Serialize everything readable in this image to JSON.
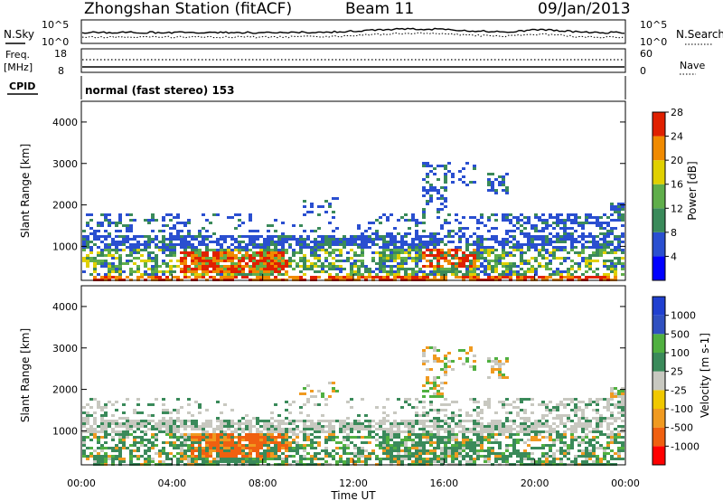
{
  "header": {
    "station": "Zhongshan Station (fitACF)",
    "beam": "Beam 11",
    "date": "09/Jan/2013"
  },
  "panel_labels": {
    "nsky": "N.Sky",
    "nsearch": "N.Search",
    "freq": "Freq.",
    "freq_unit": "[MHz]",
    "cpid": "CPID",
    "nave": "Nave",
    "nsky_top": "10^5",
    "nsky_bot": "10^0",
    "nsearch_top": "10^5",
    "nsearch_bot": "10^0",
    "freq_top": "18",
    "freq_bot": "8",
    "nave_top": "60",
    "nave_bot": "0",
    "cpid_text": "normal (fast stereo) 153"
  },
  "chart_data": [
    {
      "type": "heatmap",
      "name": "power",
      "ylabel": "Slant Range [km]",
      "ylim": [
        180,
        4500
      ],
      "yticks": [
        1000,
        2000,
        3000,
        4000
      ],
      "colorbar": {
        "label": "Power [dB]",
        "ticks": [
          "4",
          "8",
          "12",
          "16",
          "20",
          "24",
          "28"
        ],
        "colors": [
          "#0000ff",
          "#2a4fd0",
          "#3a8a5a",
          "#5fae4a",
          "#e0d000",
          "#f08a00",
          "#e02000"
        ]
      }
    },
    {
      "type": "heatmap",
      "name": "velocity",
      "ylabel": "Slant Range [km]",
      "ylim": [
        180,
        4500
      ],
      "yticks": [
        1000,
        2000,
        3000,
        4000
      ],
      "colorbar": {
        "label": "Velocity [m s-1]",
        "ticks": [
          "-1000",
          "-500",
          "-100",
          "-25",
          "25",
          "100",
          "500",
          "1000"
        ],
        "colors": [
          "#ff0000",
          "#f06010",
          "#f09a20",
          "#f0c800",
          "#c8c8c0",
          "#3a8a5a",
          "#50b040",
          "#3050c0",
          "#2040d0"
        ]
      }
    }
  ],
  "x_axis": {
    "label": "Time UT",
    "ticks": [
      "00:00",
      "04:00",
      "08:00",
      "12:00",
      "16:00",
      "20:00",
      "00:00"
    ]
  }
}
